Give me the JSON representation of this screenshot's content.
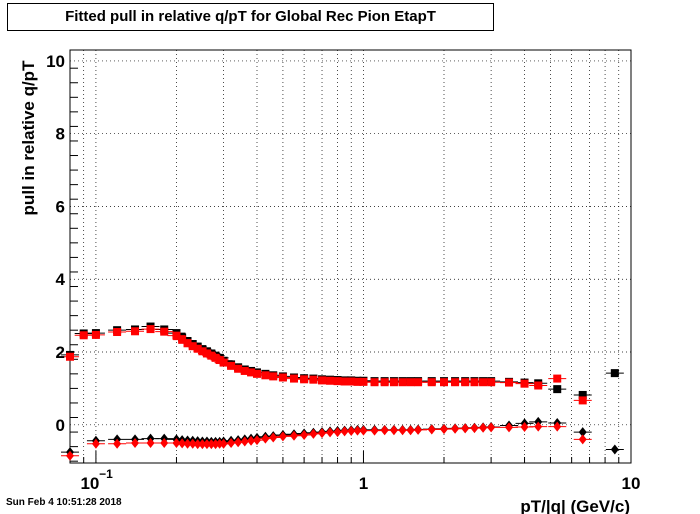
{
  "chart_data": {
    "type": "scatter",
    "title": "Fitted pull in relative q/pT for Global Rec Pion EtapT",
    "xlabel": "pT/|q| (GeV/c)",
    "ylabel": "pull in relative q/pT",
    "xscale": "log",
    "xlim": [
      0.08,
      10
    ],
    "ylim": [
      -1.05,
      10.3
    ],
    "grid": true,
    "x_tick_labels": [
      {
        "value": 0.1,
        "base": "10",
        "exp": "−1"
      },
      {
        "value": 1,
        "base": "1",
        "exp": ""
      },
      {
        "value": 10,
        "base": "10",
        "exp": ""
      }
    ],
    "y_tick_labels": [
      0,
      2,
      4,
      6,
      8,
      10
    ],
    "series": [
      {
        "marker": "square",
        "color": "#000000",
        "x": [
          0.08,
          0.09,
          0.1,
          0.12,
          0.14,
          0.16,
          0.18,
          0.2,
          0.21,
          0.22,
          0.23,
          0.24,
          0.25,
          0.26,
          0.27,
          0.28,
          0.29,
          0.3,
          0.32,
          0.34,
          0.36,
          0.38,
          0.4,
          0.43,
          0.46,
          0.5,
          0.55,
          0.6,
          0.65,
          0.7,
          0.75,
          0.8,
          0.85,
          0.9,
          0.95,
          1.0,
          1.1,
          1.2,
          1.3,
          1.4,
          1.5,
          1.6,
          1.8,
          2.0,
          2.2,
          2.4,
          2.6,
          2.8,
          3.0,
          3.5,
          4.0,
          4.5,
          5.3,
          6.6,
          8.7
        ],
        "y": [
          1.92,
          2.51,
          2.52,
          2.6,
          2.62,
          2.7,
          2.62,
          2.52,
          2.4,
          2.3,
          2.22,
          2.15,
          2.08,
          2.02,
          1.96,
          1.9,
          1.84,
          1.76,
          1.66,
          1.58,
          1.52,
          1.48,
          1.44,
          1.4,
          1.36,
          1.33,
          1.3,
          1.28,
          1.27,
          1.25,
          1.24,
          1.23,
          1.22,
          1.22,
          1.21,
          1.21,
          1.2,
          1.2,
          1.2,
          1.2,
          1.2,
          1.2,
          1.2,
          1.2,
          1.2,
          1.2,
          1.2,
          1.2,
          1.2,
          1.18,
          1.16,
          1.14,
          0.98,
          0.82,
          1.42
        ]
      },
      {
        "marker": "square",
        "color": "#ff0000",
        "x": [
          0.08,
          0.09,
          0.1,
          0.12,
          0.14,
          0.16,
          0.18,
          0.2,
          0.21,
          0.22,
          0.23,
          0.24,
          0.25,
          0.26,
          0.27,
          0.28,
          0.29,
          0.3,
          0.32,
          0.34,
          0.36,
          0.38,
          0.4,
          0.43,
          0.46,
          0.5,
          0.55,
          0.6,
          0.65,
          0.7,
          0.75,
          0.8,
          0.85,
          0.9,
          0.95,
          1.0,
          1.1,
          1.2,
          1.3,
          1.4,
          1.5,
          1.6,
          1.8,
          2.0,
          2.2,
          2.4,
          2.6,
          2.8,
          3.0,
          3.5,
          4.0,
          4.5,
          5.3,
          6.6
        ],
        "y": [
          1.87,
          2.46,
          2.47,
          2.55,
          2.57,
          2.63,
          2.56,
          2.45,
          2.34,
          2.24,
          2.16,
          2.09,
          2.02,
          1.96,
          1.9,
          1.84,
          1.78,
          1.71,
          1.62,
          1.54,
          1.48,
          1.44,
          1.4,
          1.36,
          1.33,
          1.3,
          1.27,
          1.25,
          1.24,
          1.22,
          1.21,
          1.2,
          1.19,
          1.19,
          1.18,
          1.18,
          1.17,
          1.17,
          1.17,
          1.17,
          1.17,
          1.17,
          1.17,
          1.17,
          1.17,
          1.17,
          1.17,
          1.17,
          1.17,
          1.16,
          1.13,
          1.08,
          1.27,
          0.67
        ]
      },
      {
        "marker": "diamond",
        "color": "#000000",
        "x": [
          0.08,
          0.1,
          0.12,
          0.14,
          0.16,
          0.18,
          0.2,
          0.21,
          0.22,
          0.23,
          0.24,
          0.25,
          0.26,
          0.27,
          0.28,
          0.29,
          0.3,
          0.32,
          0.34,
          0.36,
          0.38,
          0.4,
          0.43,
          0.46,
          0.5,
          0.55,
          0.6,
          0.65,
          0.7,
          0.75,
          0.8,
          0.85,
          0.9,
          0.95,
          1.0,
          1.1,
          1.2,
          1.3,
          1.4,
          1.5,
          1.6,
          1.8,
          2.0,
          2.2,
          2.4,
          2.6,
          2.8,
          3.0,
          3.5,
          4.0,
          4.5,
          5.3,
          6.6,
          8.7
        ],
        "y": [
          -0.75,
          -0.44,
          -0.4,
          -0.4,
          -0.38,
          -0.38,
          -0.4,
          -0.42,
          -0.43,
          -0.44,
          -0.45,
          -0.46,
          -0.46,
          -0.47,
          -0.47,
          -0.47,
          -0.46,
          -0.44,
          -0.42,
          -0.4,
          -0.38,
          -0.36,
          -0.33,
          -0.31,
          -0.28,
          -0.26,
          -0.24,
          -0.22,
          -0.2,
          -0.18,
          -0.17,
          -0.16,
          -0.15,
          -0.14,
          -0.14,
          -0.14,
          -0.14,
          -0.14,
          -0.14,
          -0.14,
          -0.13,
          -0.12,
          -0.11,
          -0.1,
          -0.09,
          -0.08,
          -0.07,
          -0.06,
          -0.02,
          0.04,
          0.08,
          0.05,
          -0.2,
          -0.68
        ]
      },
      {
        "marker": "diamond",
        "color": "#ff0000",
        "x": [
          0.08,
          0.1,
          0.12,
          0.14,
          0.16,
          0.18,
          0.2,
          0.21,
          0.22,
          0.23,
          0.24,
          0.25,
          0.26,
          0.27,
          0.28,
          0.29,
          0.3,
          0.32,
          0.34,
          0.36,
          0.38,
          0.4,
          0.43,
          0.46,
          0.5,
          0.55,
          0.6,
          0.65,
          0.7,
          0.75,
          0.8,
          0.85,
          0.9,
          0.95,
          1.0,
          1.1,
          1.2,
          1.3,
          1.4,
          1.5,
          1.6,
          1.8,
          2.0,
          2.2,
          2.4,
          2.6,
          2.8,
          3.0,
          3.5,
          4.0,
          4.5,
          5.3,
          6.6
        ],
        "y": [
          -0.85,
          -0.52,
          -0.52,
          -0.5,
          -0.5,
          -0.5,
          -0.5,
          -0.51,
          -0.52,
          -0.52,
          -0.53,
          -0.53,
          -0.53,
          -0.53,
          -0.53,
          -0.52,
          -0.52,
          -0.5,
          -0.48,
          -0.46,
          -0.44,
          -0.42,
          -0.38,
          -0.35,
          -0.32,
          -0.3,
          -0.28,
          -0.25,
          -0.23,
          -0.21,
          -0.2,
          -0.18,
          -0.17,
          -0.16,
          -0.16,
          -0.16,
          -0.15,
          -0.15,
          -0.15,
          -0.15,
          -0.14,
          -0.13,
          -0.12,
          -0.11,
          -0.1,
          -0.09,
          -0.08,
          -0.07,
          -0.07,
          -0.06,
          -0.05,
          -0.05,
          -0.4
        ]
      }
    ]
  },
  "timestamp": "Sun Feb  4 10:51:28 2018"
}
